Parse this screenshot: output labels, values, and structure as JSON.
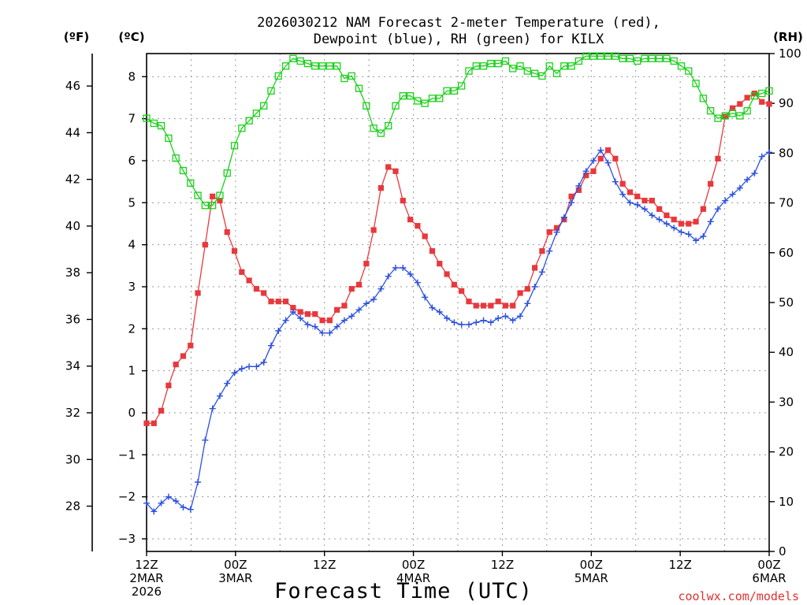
{
  "chart_data": {
    "type": "line",
    "title_line1": "2026030212 NAM Forecast 2-meter Temperature (red),",
    "title_line2": "Dewpoint (blue), RH (green) for KILX",
    "xlabel": "Forecast Time (UTC)",
    "credit": "coolwx.com/models",
    "units": {
      "fahrenheit": "(ºF)",
      "celsius": "(ºC)",
      "rh": "(RH)"
    },
    "x_range_hours": [
      0,
      84
    ],
    "x_ticks": [
      {
        "hour": 0,
        "lines": [
          "12Z",
          "2MAR",
          "2026"
        ]
      },
      {
        "hour": 12,
        "lines": [
          "00Z",
          "3MAR"
        ]
      },
      {
        "hour": 24,
        "lines": [
          "12Z"
        ]
      },
      {
        "hour": 36,
        "lines": [
          "00Z",
          "4MAR"
        ]
      },
      {
        "hour": 48,
        "lines": [
          "12Z"
        ]
      },
      {
        "hour": 60,
        "lines": [
          "00Z",
          "5MAR"
        ]
      },
      {
        "hour": 72,
        "lines": [
          "12Z"
        ]
      },
      {
        "hour": 84,
        "lines": [
          "00Z",
          "6MAR"
        ]
      }
    ],
    "celsius_axis": {
      "range": [
        -3.3,
        8.55
      ],
      "ticks": [
        "-3",
        "-2",
        "-1",
        "0",
        "1",
        "2",
        "3",
        "4",
        "5",
        "6",
        "7",
        "8"
      ]
    },
    "fahrenheit_axis": {
      "range": [
        26.06,
        47.39
      ],
      "ticks": [
        "28",
        "30",
        "32",
        "34",
        "36",
        "38",
        "40",
        "42",
        "44",
        "46"
      ]
    },
    "rh_axis": {
      "range": [
        0,
        100
      ],
      "ticks": [
        "0",
        "10",
        "20",
        "30",
        "40",
        "50",
        "60",
        "70",
        "80",
        "90",
        "100"
      ]
    },
    "series": [
      {
        "name": "Temperature",
        "axis": "celsius",
        "color": "#e8383d",
        "marker": "filled-square",
        "values": [
          -0.25,
          -0.25,
          0.05,
          0.65,
          1.15,
          1.35,
          1.6,
          2.85,
          4.0,
          5.15,
          5.05,
          4.3,
          3.85,
          3.35,
          3.15,
          2.95,
          2.85,
          2.65,
          2.65,
          2.65,
          2.5,
          2.4,
          2.35,
          2.35,
          2.2,
          2.2,
          2.45,
          2.55,
          2.95,
          3.05,
          3.55,
          4.35,
          5.35,
          5.85,
          5.75,
          5.05,
          4.6,
          4.45,
          4.2,
          3.85,
          3.55,
          3.3,
          3.05,
          2.9,
          2.65,
          2.55,
          2.55,
          2.55,
          2.65,
          2.55,
          2.55,
          2.85,
          2.95,
          3.45,
          3.85,
          4.3,
          4.4,
          4.6,
          5.15,
          5.3,
          5.65,
          5.75,
          6.05,
          6.25,
          6.05,
          5.45,
          5.25,
          5.15,
          5.05,
          5.05,
          4.85,
          4.7,
          4.6,
          4.5,
          4.5,
          4.55,
          4.85,
          5.45,
          6.05,
          7.05,
          7.25,
          7.35,
          7.5,
          7.6,
          7.4,
          7.35
        ]
      },
      {
        "name": "Dewpoint",
        "axis": "celsius",
        "color": "#2a4fe0",
        "marker": "plus",
        "values": [
          -2.15,
          -2.35,
          -2.15,
          -2.0,
          -2.1,
          -2.25,
          -2.3,
          -1.65,
          -0.65,
          0.1,
          0.4,
          0.7,
          0.95,
          1.05,
          1.1,
          1.1,
          1.2,
          1.6,
          1.95,
          2.2,
          2.4,
          2.25,
          2.1,
          2.05,
          1.9,
          1.9,
          2.05,
          2.2,
          2.3,
          2.45,
          2.6,
          2.7,
          2.95,
          3.25,
          3.45,
          3.45,
          3.3,
          3.1,
          2.75,
          2.5,
          2.4,
          2.25,
          2.15,
          2.1,
          2.1,
          2.15,
          2.2,
          2.15,
          2.25,
          2.3,
          2.2,
          2.3,
          2.6,
          3.0,
          3.35,
          3.85,
          4.3,
          4.65,
          5.0,
          5.4,
          5.75,
          6.0,
          6.25,
          5.95,
          5.5,
          5.2,
          5.0,
          4.95,
          4.85,
          4.7,
          4.6,
          4.5,
          4.4,
          4.3,
          4.25,
          4.1,
          4.2,
          4.55,
          4.85,
          5.05,
          5.2,
          5.35,
          5.55,
          5.7,
          6.1,
          6.2
        ]
      },
      {
        "name": "RH",
        "axis": "rh",
        "color": "#19d119",
        "marker": "open-square",
        "values": [
          87,
          86,
          85.5,
          83,
          79,
          76.5,
          74,
          71.5,
          69.5,
          69.5,
          71.5,
          76,
          81.5,
          85,
          86.5,
          88,
          89.5,
          92.5,
          95.5,
          97.5,
          99,
          98.5,
          98,
          97.5,
          97.5,
          97.5,
          97.5,
          95,
          95.5,
          93,
          89.5,
          85,
          84,
          85.5,
          89.5,
          91.5,
          91.5,
          90.5,
          90,
          91,
          91,
          92.5,
          92.5,
          93.5,
          96.5,
          97.5,
          97.5,
          98,
          98,
          98.5,
          97,
          97.5,
          96.5,
          96,
          95.5,
          97.5,
          96,
          97.5,
          97.5,
          98.5,
          99.5,
          99.5,
          99.5,
          99.5,
          99.5,
          99,
          99,
          98.5,
          99,
          99,
          99,
          99,
          98.5,
          97.5,
          96.5,
          94,
          91,
          88.5,
          87,
          87.5,
          88,
          87.5,
          88.5,
          91.5,
          92,
          92.5
        ]
      }
    ]
  }
}
